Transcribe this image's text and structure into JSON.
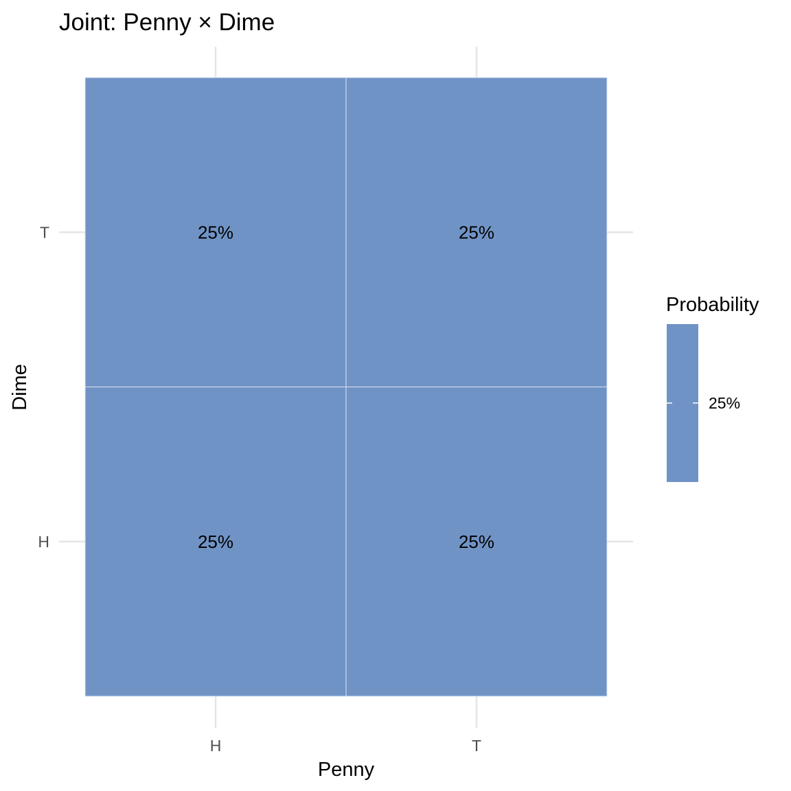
{
  "chart_data": {
    "type": "heatmap",
    "title": "Joint: Penny × Dime",
    "xlabel": "Penny",
    "ylabel": "Dime",
    "x_categories": [
      "H",
      "T"
    ],
    "y_categories": [
      "H",
      "T"
    ],
    "cells": [
      {
        "x": "H",
        "y": "H",
        "value": 0.25,
        "label": "25%"
      },
      {
        "x": "T",
        "y": "H",
        "value": 0.25,
        "label": "25%"
      },
      {
        "x": "H",
        "y": "T",
        "value": 0.25,
        "label": "25%"
      },
      {
        "x": "T",
        "y": "T",
        "value": 0.25,
        "label": "25%"
      }
    ],
    "legend": {
      "title": "Probability",
      "position": "right",
      "breaks": [
        {
          "value": 0.25,
          "label": "25%"
        }
      ]
    },
    "colors": {
      "fill": "#7093c6",
      "cell_border": "#dbe4f1",
      "grid": "#e5e5e5"
    },
    "grid": true
  }
}
